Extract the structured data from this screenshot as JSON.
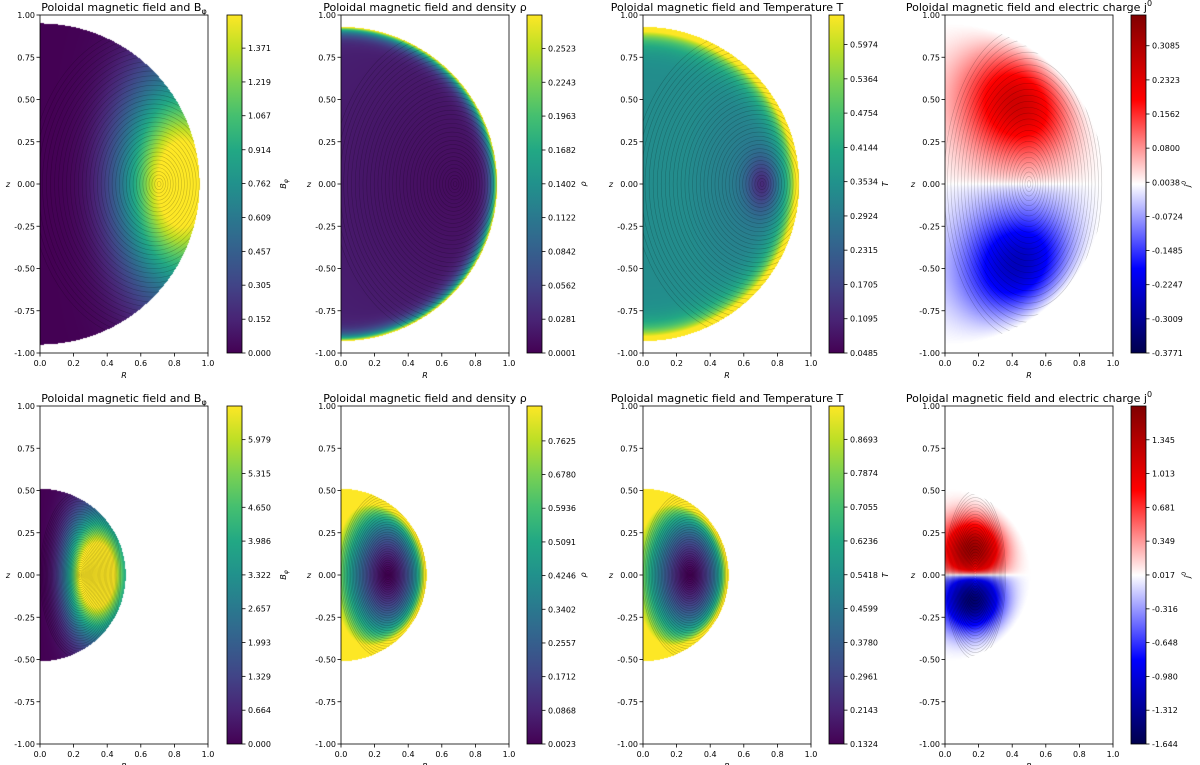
{
  "figure": {
    "background": "#ffffff"
  },
  "colormaps": {
    "viridis": [
      "#440154",
      "#482475",
      "#414487",
      "#355f8d",
      "#2a788e",
      "#21918c",
      "#22a884",
      "#44bf70",
      "#7ad151",
      "#bddf26",
      "#fde725"
    ],
    "seismic": [
      "#00004c",
      "#0000ff",
      "#ffffff",
      "#ff0000",
      "#800000"
    ]
  },
  "chart_data": [
    {
      "id": "a",
      "type": "heatmap",
      "title": "Poloidal magnetic field and B",
      "title_sub": "φ",
      "xlabel": "R",
      "ylabel": "z",
      "cbar_label": "B",
      "cbar_label_sub": "φ",
      "xlim": [
        0,
        1
      ],
      "ylim": [
        -1,
        1
      ],
      "xticks": [
        "0.0",
        "0.2",
        "0.4",
        "0.6",
        "0.8",
        "1.0"
      ],
      "yticks": [
        "-1.00",
        "-0.75",
        "-0.50",
        "-0.25",
        "0.00",
        "0.25",
        "0.50",
        "0.75",
        "1.00"
      ],
      "domain_radius": 0.95,
      "colormap": "viridis",
      "field": "bphi",
      "peak": {
        "R": 0.71,
        "z": 0.0
      },
      "cbar_range": [
        0.0,
        1.52
      ],
      "cbar_ticks": [
        "0.000",
        "0.152",
        "0.305",
        "0.457",
        "0.609",
        "0.762",
        "0.914",
        "1.067",
        "1.219",
        "1.371"
      ]
    },
    {
      "id": "b",
      "type": "heatmap",
      "title": "Poloidal magnetic field and density ρ",
      "title_sub": "",
      "xlabel": "R",
      "ylabel": "z",
      "cbar_label": "ρ",
      "cbar_label_sub": "",
      "xlim": [
        0,
        1
      ],
      "ylim": [
        -1,
        1
      ],
      "xticks": [
        "0.0",
        "0.2",
        "0.4",
        "0.6",
        "0.8",
        "1.0"
      ],
      "yticks": [
        "-1.00",
        "-0.75",
        "-0.50",
        "-0.25",
        "0.00",
        "0.25",
        "0.50",
        "0.75",
        "1.00"
      ],
      "domain_radius": 0.93,
      "colormap": "viridis",
      "field": "rim",
      "peak": {
        "R": 0.68,
        "z": 0.0
      },
      "cbar_range": [
        0.0001,
        0.28
      ],
      "cbar_ticks": [
        "0.0001",
        "0.0281",
        "0.0562",
        "0.0842",
        "0.1122",
        "0.1402",
        "0.1682",
        "0.1963",
        "0.2243",
        "0.2523"
      ]
    },
    {
      "id": "c",
      "type": "heatmap",
      "title": "Poloidal magnetic field and Temperature T",
      "title_sub": "",
      "xlabel": "R",
      "ylabel": "z",
      "cbar_label": "T",
      "cbar_label_sub": "",
      "xlim": [
        0,
        1
      ],
      "ylim": [
        -1,
        1
      ],
      "xticks": [
        "0.0",
        "0.2",
        "0.4",
        "0.6",
        "0.8",
        "1.0"
      ],
      "yticks": [
        "-1.00",
        "-0.75",
        "-0.50",
        "-0.25",
        "0.00",
        "0.25",
        "0.50",
        "0.75",
        "1.00"
      ],
      "domain_radius": 0.93,
      "colormap": "viridis",
      "field": "rimsmooth",
      "peak": {
        "R": 0.71,
        "z": 0.0
      },
      "cbar_range": [
        0.0485,
        0.65
      ],
      "cbar_ticks": [
        "0.0485",
        "0.1095",
        "0.1705",
        "0.2315",
        "0.2924",
        "0.3534",
        "0.4144",
        "0.4754",
        "0.5364",
        "0.5974"
      ]
    },
    {
      "id": "d",
      "type": "heatmap",
      "title": "Poloidal magnetic field and electric charge j",
      "title_sub": "0",
      "xlabel": "R",
      "ylabel": "z",
      "cbar_label": "j",
      "cbar_label_sub": "0",
      "xlim": [
        0,
        1
      ],
      "ylim": [
        -1,
        1
      ],
      "xticks": [
        "0.0",
        "0.2",
        "0.4",
        "0.6",
        "0.8",
        "1.0"
      ],
      "yticks": [
        "-1.00",
        "-0.75",
        "-0.50",
        "-0.25",
        "0.00",
        "0.25",
        "0.50",
        "0.75",
        "1.00"
      ],
      "domain_radius": 0.95,
      "colormap": "seismic",
      "field": "charge",
      "peak": {
        "R": 0.5,
        "z": 0.55
      },
      "cbar_range": [
        -0.3771,
        0.3771
      ],
      "cbar_ticks": [
        "-0.3771",
        "-0.3009",
        "-0.2247",
        "-0.1485",
        "-0.0724",
        "0.0038",
        "0.0800",
        "0.1562",
        "0.2323",
        "0.3085"
      ]
    },
    {
      "id": "e",
      "type": "heatmap",
      "title": "Poloidal magnetic field and B",
      "title_sub": "φ",
      "xlabel": "R",
      "ylabel": "z",
      "cbar_label": "B",
      "cbar_label_sub": "φ",
      "xlim": [
        0,
        1
      ],
      "ylim": [
        -1,
        1
      ],
      "xticks": [
        "0.0",
        "0.2",
        "0.4",
        "0.6",
        "0.8",
        "1.0"
      ],
      "yticks": [
        "-1.00",
        "-0.75",
        "-0.50",
        "-0.25",
        "0.00",
        "0.25",
        "0.50",
        "0.75",
        "1.00"
      ],
      "domain_radius": 0.51,
      "colormap": "viridis",
      "field": "bphi",
      "peak": {
        "R": 0.24,
        "z": 0.0
      },
      "cbar_range": [
        0.0,
        6.64
      ],
      "cbar_ticks": [
        "0.000",
        "0.664",
        "1.329",
        "1.993",
        "2.657",
        "3.322",
        "3.986",
        "4.650",
        "5.315",
        "5.979"
      ]
    },
    {
      "id": "f",
      "type": "heatmap",
      "title": "Poloidal magnetic field and density ρ",
      "title_sub": "",
      "xlabel": "R",
      "ylabel": "z",
      "cbar_label": "ρ",
      "cbar_label_sub": "",
      "xlim": [
        0,
        1
      ],
      "ylim": [
        -1,
        1
      ],
      "xticks": [
        "0.0",
        "0.2",
        "0.4",
        "0.6",
        "0.8",
        "1.0"
      ],
      "yticks": [
        "-1.00",
        "-0.75",
        "-0.50",
        "-0.25",
        "0.00",
        "0.25",
        "0.50",
        "0.75",
        "1.00"
      ],
      "domain_radius": 0.51,
      "colormap": "viridis",
      "field": "well",
      "peak": {
        "R": 0.28,
        "z": 0.0
      },
      "cbar_range": [
        0.0023,
        0.85
      ],
      "cbar_ticks": [
        "0.0023",
        "0.0868",
        "0.1712",
        "0.2557",
        "0.3402",
        "0.4246",
        "0.5091",
        "0.5936",
        "0.6780",
        "0.7625"
      ]
    },
    {
      "id": "g",
      "type": "heatmap",
      "title": "Poloidal magnetic field and Temperature T",
      "title_sub": "",
      "xlabel": "R",
      "ylabel": "z",
      "cbar_label": "T",
      "cbar_label_sub": "",
      "xlim": [
        0,
        1
      ],
      "ylim": [
        -1,
        1
      ],
      "xticks": [
        "0.0",
        "0.2",
        "0.4",
        "0.6",
        "0.8",
        "1.0"
      ],
      "yticks": [
        "-1.00",
        "-0.75",
        "-0.50",
        "-0.25",
        "0.00",
        "0.25",
        "0.50",
        "0.75",
        "1.00"
      ],
      "domain_radius": 0.51,
      "colormap": "viridis",
      "field": "well",
      "peak": {
        "R": 0.28,
        "z": 0.0
      },
      "cbar_range": [
        0.1324,
        0.95
      ],
      "cbar_ticks": [
        "0.1324",
        "0.2143",
        "0.2961",
        "0.3780",
        "0.4599",
        "0.5418",
        "0.6236",
        "0.7055",
        "0.7874",
        "0.8693"
      ]
    },
    {
      "id": "h",
      "type": "heatmap",
      "title": "Poloidal magnetic field and electric charge j",
      "title_sub": "0",
      "xlabel": "R",
      "ylabel": "z",
      "cbar_label": "j",
      "cbar_label_sub": "0",
      "xlim": [
        0,
        1
      ],
      "ylim": [
        -1,
        1
      ],
      "xticks": [
        "0.0",
        "0.2",
        "0.4",
        "0.6",
        "0.8",
        "1.0"
      ],
      "yticks": [
        "-1.00",
        "-0.75",
        "-0.50",
        "-0.25",
        "0.00",
        "0.25",
        "0.50",
        "0.75",
        "1.00"
      ],
      "domain_radius": 0.51,
      "colormap": "seismic",
      "field": "charge",
      "peak": {
        "R": 0.18,
        "z": 0.17
      },
      "cbar_range": [
        -1.644,
        1.677
      ],
      "cbar_ticks": [
        "-1.644",
        "-1.312",
        "-0.980",
        "-0.648",
        "-0.316",
        "0.017",
        "0.349",
        "0.681",
        "1.013",
        "1.345"
      ]
    }
  ]
}
